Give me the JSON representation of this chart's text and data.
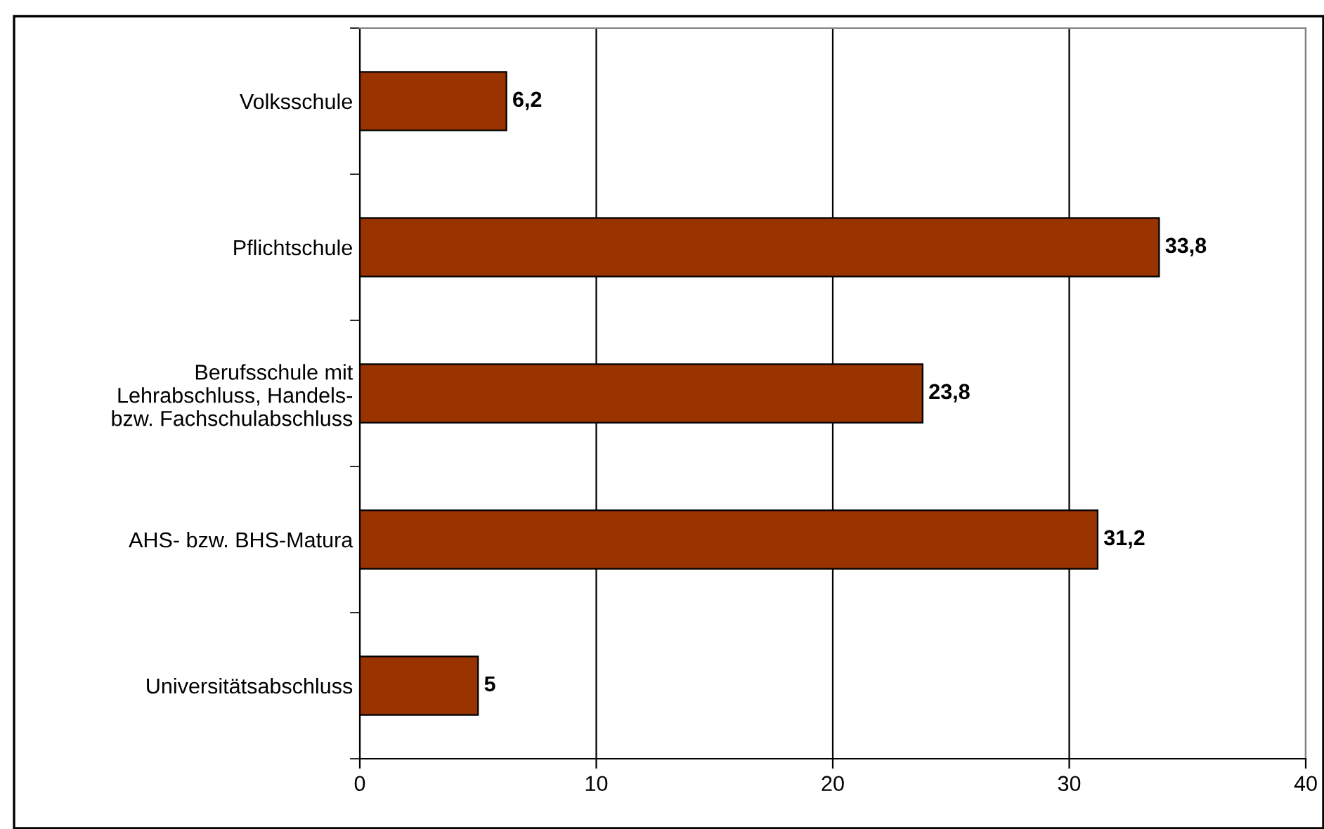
{
  "chart_data": {
    "type": "bar",
    "orientation": "horizontal",
    "categories": [
      "Volksschule",
      "Pflichtschule",
      "Berufsschule mit\nLehrabschluss, Handels-\nbzw. Fachschulabschluss",
      "AHS- bzw. BHS-Matura",
      "Universitätsabschluss"
    ],
    "values": [
      6.2,
      33.8,
      23.8,
      31.2,
      5
    ],
    "value_labels": [
      "6,2",
      "33,8",
      "23,8",
      "31,2",
      "5"
    ],
    "color": "#993300",
    "xlim": [
      0,
      40
    ],
    "xticks": [
      0,
      10,
      20,
      30,
      40
    ],
    "grid": "x"
  }
}
